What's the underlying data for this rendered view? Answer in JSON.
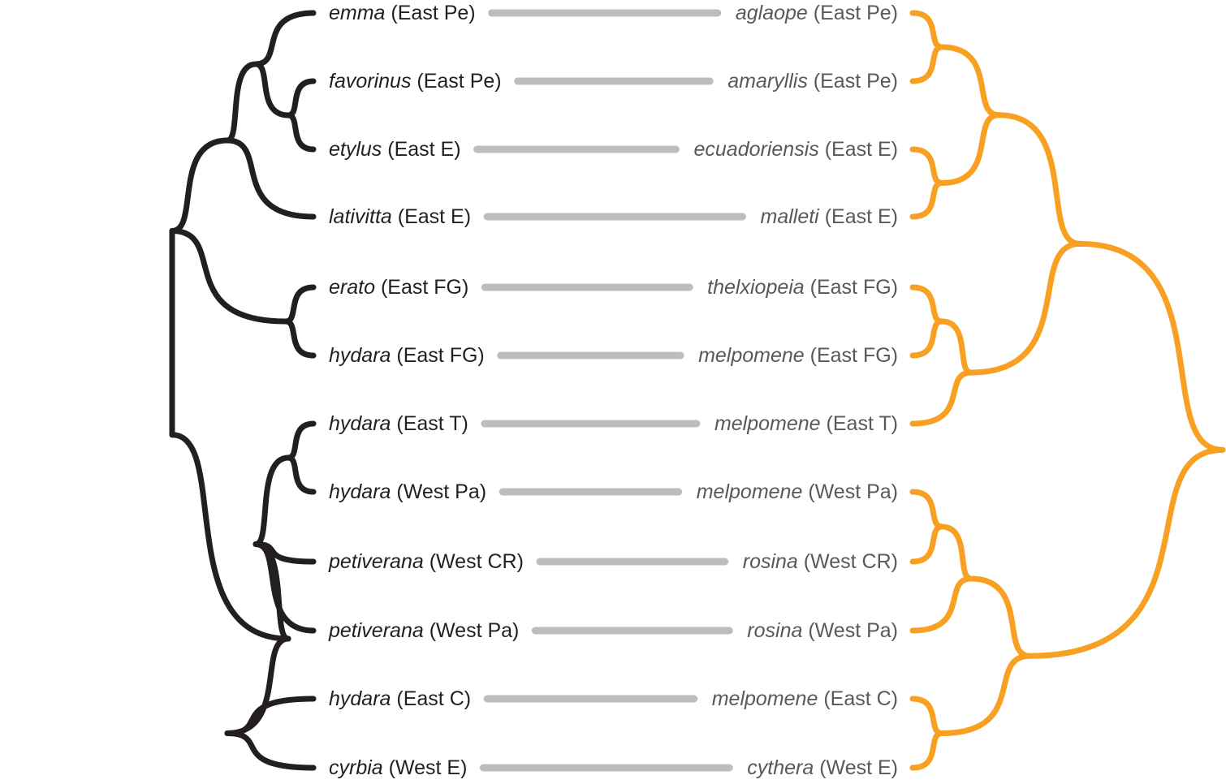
{
  "colors": {
    "left_tree": "#231f20",
    "right_tree": "#f7a021",
    "connector": "#bcbdc0",
    "left_text": "#231f20",
    "right_text": "#58595b"
  },
  "rows": [
    {
      "left": {
        "species": "emma",
        "region": "(East Pe)"
      },
      "right": {
        "species": "aglaope",
        "region": "(East Pe)"
      }
    },
    {
      "left": {
        "species": "favorinus",
        "region": "(East Pe)"
      },
      "right": {
        "species": "amaryllis",
        "region": "(East Pe)"
      }
    },
    {
      "left": {
        "species": "etylus",
        "region": "(East E)"
      },
      "right": {
        "species": "ecuadoriensis",
        "region": "(East E)"
      }
    },
    {
      "left": {
        "species": "lativitta",
        "region": "(East E)"
      },
      "right": {
        "species": "malleti",
        "region": "(East E)"
      }
    },
    {
      "left": {
        "species": "erato",
        "region": "(East FG)"
      },
      "right": {
        "species": "thelxiopeia",
        "region": "(East FG)"
      }
    },
    {
      "left": {
        "species": "hydara",
        "region": "(East FG)"
      },
      "right": {
        "species": "melpomene",
        "region": "(East FG)"
      }
    },
    {
      "left": {
        "species": "hydara",
        "region": "(East T)"
      },
      "right": {
        "species": "melpomene",
        "region": "(East T)"
      }
    },
    {
      "left": {
        "species": "hydara",
        "region": "(West Pa)"
      },
      "right": {
        "species": "melpomene",
        "region": "(West Pa)"
      }
    },
    {
      "left": {
        "species": "petiverana",
        "region": "(West CR)"
      },
      "right": {
        "species": "rosina",
        "region": "(West CR)"
      }
    },
    {
      "left": {
        "species": "petiverana",
        "region": "(West Pa)"
      },
      "right": {
        "species": "rosina",
        "region": "(West Pa)"
      }
    },
    {
      "left": {
        "species": "hydara",
        "region": "(East C)"
      },
      "right": {
        "species": "melpomene",
        "region": "(East C)"
      }
    },
    {
      "left": {
        "species": "cyrbia",
        "region": "(West E)"
      },
      "right": {
        "species": "cythera",
        "region": "(West E)"
      }
    }
  ],
  "left_tree": "((((0,(1,2)),3),(4,5)),(((6,7),8,9),(10,11)))",
  "right_tree": "((((0,1),(2,3)),((4,5),6)),(((7,8),9),(10,11)))"
}
